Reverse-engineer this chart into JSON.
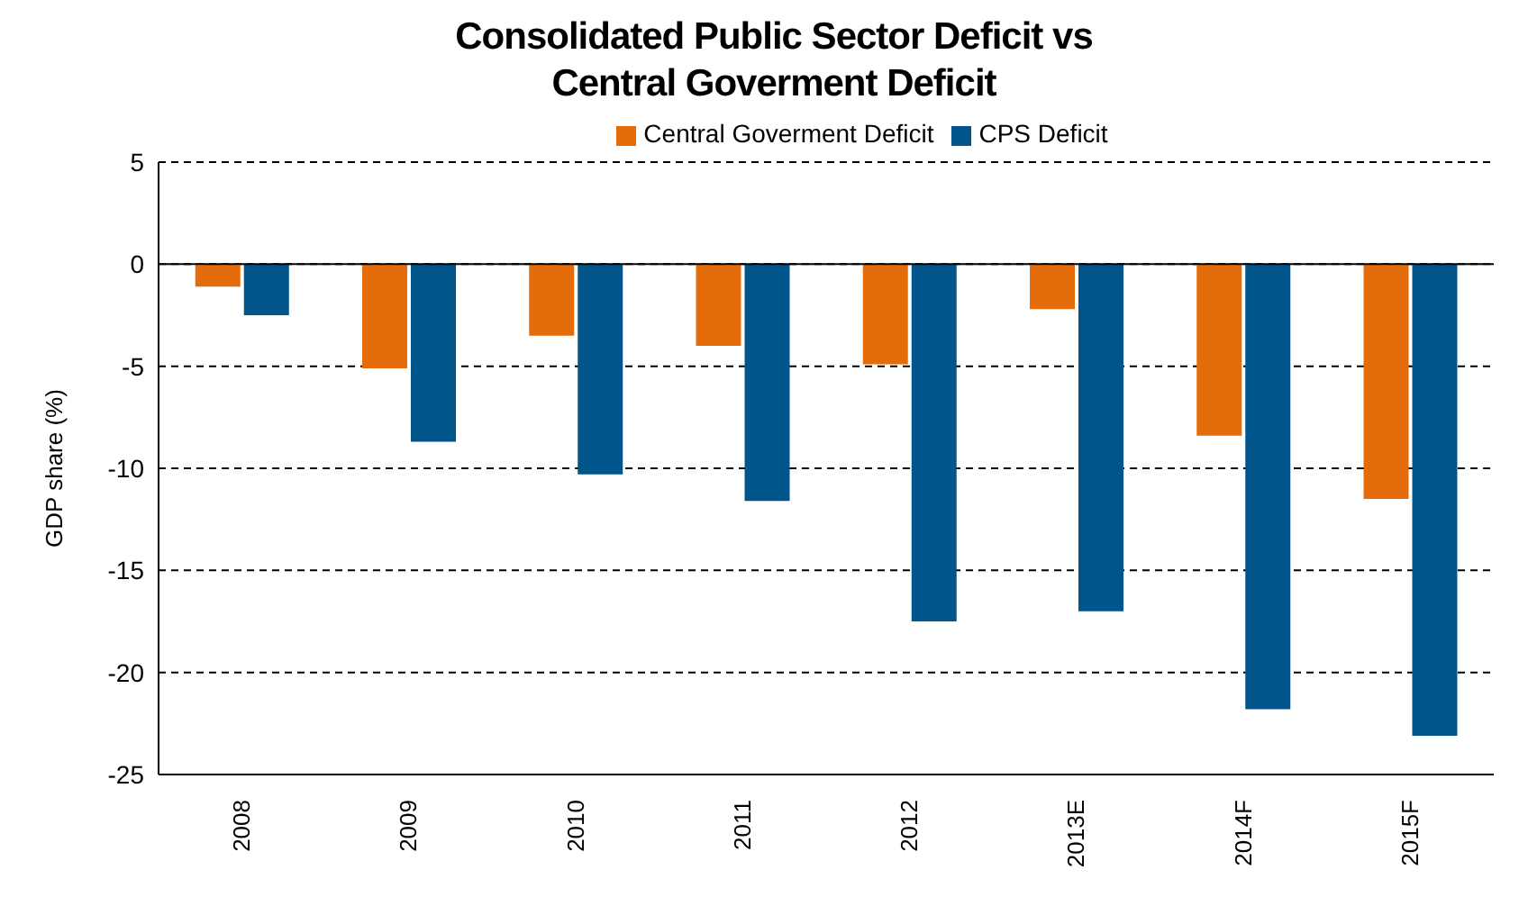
{
  "chart_data": {
    "type": "bar",
    "title": "Consolidated Public Sector Deficit vs\nCentral Goverment Deficit",
    "ylabel": "GDP share (%)",
    "categories": [
      "2008",
      "2009",
      "2010",
      "2011",
      "2012",
      "2013E",
      "2014F",
      "2015F"
    ],
    "series": [
      {
        "name": "Central Goverment Deficit",
        "color": "#e46c0a",
        "values": [
          -1.1,
          -5.1,
          -3.5,
          -4.0,
          -4.9,
          -2.2,
          -8.4,
          -11.5
        ]
      },
      {
        "name": "CPS Deficit",
        "color": "#00558a",
        "values": [
          -2.5,
          -8.7,
          -10.3,
          -11.6,
          -17.5,
          -17.0,
          -21.8,
          -23.1
        ]
      }
    ],
    "ylim": [
      -25,
      5
    ],
    "yticks": [
      -25,
      -20,
      -15,
      -10,
      -5,
      0,
      5
    ],
    "grid": "y",
    "legend": "top"
  }
}
